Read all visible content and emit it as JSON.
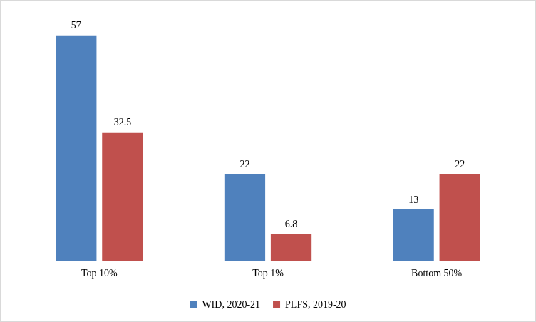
{
  "chart_data": {
    "type": "bar",
    "categories": [
      "Top 10%",
      "Top 1%",
      "Bottom 50%"
    ],
    "series": [
      {
        "name": "WID, 2020-21",
        "color": "#4f81bd",
        "values": [
          57,
          22,
          13
        ]
      },
      {
        "name": "PLFS, 2019-20",
        "color": "#c0504d",
        "values": [
          32.5,
          6.8,
          22
        ]
      }
    ],
    "data_labels": true,
    "tick_labels": "x",
    "grid": false,
    "legend": "bottom"
  }
}
